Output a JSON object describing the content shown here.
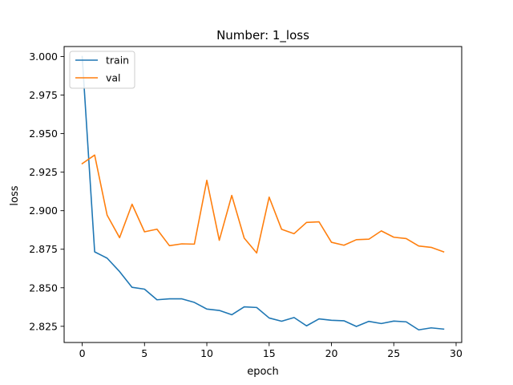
{
  "chart_data": {
    "type": "line",
    "title": "Number: 1_loss",
    "xlabel": "epoch",
    "ylabel": "loss",
    "xlim": [
      -1.45,
      30.45
    ],
    "ylim": [
      2.8145,
      3.0065
    ],
    "xticks": [
      0,
      5,
      10,
      15,
      20,
      25,
      30
    ],
    "yticks": [
      2.825,
      2.85,
      2.875,
      2.9,
      2.925,
      2.95,
      2.975,
      3.0
    ],
    "ytick_labels": [
      "2.825",
      "2.850",
      "2.875",
      "2.900",
      "2.925",
      "2.950",
      "2.975",
      "3.000"
    ],
    "grid": false,
    "legend_position": "top-left",
    "x": [
      0,
      1,
      2,
      3,
      4,
      5,
      6,
      7,
      8,
      9,
      10,
      11,
      12,
      13,
      14,
      15,
      16,
      17,
      18,
      19,
      20,
      21,
      22,
      23,
      24,
      25,
      26,
      27,
      28,
      29
    ],
    "series": [
      {
        "name": "train",
        "color": "#1f77b4",
        "values": [
          3.0,
          2.8733,
          2.8692,
          2.8605,
          2.8503,
          2.8491,
          2.8422,
          2.8428,
          2.8428,
          2.8405,
          2.8362,
          2.8353,
          2.8325,
          2.8376,
          2.8372,
          2.8304,
          2.8283,
          2.8307,
          2.8253,
          2.8298,
          2.8289,
          2.8286,
          2.8249,
          2.8282,
          2.8268,
          2.8284,
          2.8279,
          2.8227,
          2.824,
          2.8232
        ]
      },
      {
        "name": "val",
        "color": "#ff7f0e",
        "values": [
          2.9305,
          2.9361,
          2.8971,
          2.8825,
          2.9042,
          2.8863,
          2.888,
          2.8773,
          2.8785,
          2.8783,
          2.9197,
          2.8808,
          2.9099,
          2.8822,
          2.8726,
          2.9088,
          2.8879,
          2.8851,
          2.8924,
          2.8928,
          2.8795,
          2.8776,
          2.8812,
          2.8815,
          2.8869,
          2.8828,
          2.8819,
          2.8771,
          2.8762,
          2.8733
        ]
      }
    ]
  }
}
